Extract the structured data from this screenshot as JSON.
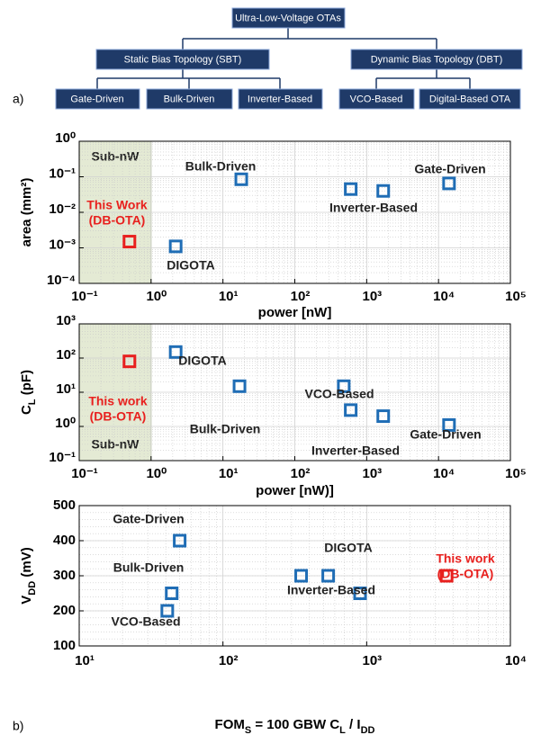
{
  "diagram": {
    "root": "Ultra-Low-Voltage OTAs",
    "branches": [
      {
        "label": "Static Bias Topology (SBT)",
        "children": [
          "Gate-Driven",
          "Bulk-Driven",
          "Inverter-Based"
        ]
      },
      {
        "label": "Dynamic Bias Topology (DBT)",
        "children": [
          "VCO-Based",
          "Digital-Based OTA"
        ]
      }
    ],
    "panel_labels": [
      "a)",
      "b)"
    ]
  },
  "chart_data": [
    {
      "type": "scatter",
      "xlabel": [
        {
          "text": "power [nW]"
        }
      ],
      "ylabel": [
        {
          "text": "area (mm²)"
        }
      ],
      "xlog": true,
      "ylog": true,
      "grid": true,
      "minor_grid": true,
      "xlim": [
        0.1,
        100000
      ],
      "ylim": [
        0.0001,
        1
      ],
      "xticks": [
        {
          "value": 0.1,
          "label": "10⁻¹"
        },
        {
          "value": 1,
          "label": "10⁰"
        },
        {
          "value": 10,
          "label": "10¹"
        },
        {
          "value": 100,
          "label": "10²"
        },
        {
          "value": 1000,
          "label": "10³"
        },
        {
          "value": 10000,
          "label": "10⁴"
        },
        {
          "value": 100000,
          "label": "10⁵"
        }
      ],
      "yticks": [
        {
          "value": 0.0001,
          "label": "10⁻⁴"
        },
        {
          "value": 0.001,
          "label": "10⁻³"
        },
        {
          "value": 0.01,
          "label": "10⁻²"
        },
        {
          "value": 0.1,
          "label": "10⁻¹"
        },
        {
          "value": 1,
          "label": "10⁰"
        }
      ],
      "shaded_region": {
        "xlim": [
          0.1,
          1
        ],
        "label": "Sub-nW"
      },
      "series": [
        {
          "name": "This Work",
          "subname": "(DB-OTA)",
          "color": "#e8201e",
          "x": [
            0.5
          ],
          "values": [
            0.0015
          ]
        },
        {
          "name": "DIGOTA",
          "color": "#1f6db5",
          "x": [
            2.2
          ],
          "values": [
            0.0011
          ]
        },
        {
          "name": "Bulk-Driven",
          "color": "#1f6db5",
          "x": [
            18
          ],
          "values": [
            0.085
          ]
        },
        {
          "name": "Inverter-Based",
          "color": "#1f6db5",
          "x": [
            600,
            1700
          ],
          "values": [
            0.045,
            0.04
          ]
        },
        {
          "name": "Gate-Driven",
          "color": "#1f6db5",
          "x": [
            14000
          ],
          "values": [
            0.065
          ]
        }
      ]
    },
    {
      "type": "scatter",
      "xlabel": [
        {
          "text": "power [nW)]"
        }
      ],
      "ylabel": [
        {
          "text": "C"
        },
        {
          "text": "L",
          "sub": true
        },
        {
          "text": " (pF)"
        }
      ],
      "xlog": true,
      "ylog": true,
      "grid": true,
      "minor_grid": true,
      "xlim": [
        0.1,
        100000
      ],
      "ylim": [
        0.1,
        1000
      ],
      "xticks": [
        {
          "value": 0.1,
          "label": "10⁻¹"
        },
        {
          "value": 1,
          "label": "10⁰"
        },
        {
          "value": 10,
          "label": "10¹"
        },
        {
          "value": 100,
          "label": "10²"
        },
        {
          "value": 1000,
          "label": "10³"
        },
        {
          "value": 10000,
          "label": "10⁴"
        },
        {
          "value": 100000,
          "label": "10⁵"
        }
      ],
      "yticks": [
        {
          "value": 0.1,
          "label": "10⁻¹"
        },
        {
          "value": 1,
          "label": "10⁰"
        },
        {
          "value": 10,
          "label": "10¹"
        },
        {
          "value": 100,
          "label": "10²"
        },
        {
          "value": 1000,
          "label": "10³"
        }
      ],
      "shaded_region": {
        "xlim": [
          0.1,
          1
        ],
        "label": "Sub-nW"
      },
      "series": [
        {
          "name": "This work",
          "subname": "(DB-OTA)",
          "color": "#e8201e",
          "x": [
            0.5
          ],
          "values": [
            80
          ]
        },
        {
          "name": "DIGOTA",
          "color": "#1f6db5",
          "x": [
            2.2
          ],
          "values": [
            150
          ]
        },
        {
          "name": "Bulk-Driven",
          "color": "#1f6db5",
          "x": [
            17
          ],
          "values": [
            15
          ]
        },
        {
          "name": "VCO-Based",
          "color": "#1f6db5",
          "x": [
            480
          ],
          "values": [
            15
          ]
        },
        {
          "name": "Inverter-Based",
          "color": "#1f6db5",
          "x": [
            600,
            1700
          ],
          "values": [
            3,
            2
          ]
        },
        {
          "name": "Gate-Driven",
          "color": "#1f6db5",
          "x": [
            14000
          ],
          "values": [
            1.1
          ]
        }
      ]
    },
    {
      "type": "scatter",
      "xlabel": [
        {
          "text": "FOM"
        },
        {
          "text": "S",
          "sub": true
        },
        {
          "text": " = 100 GBW C"
        },
        {
          "text": "L",
          "sub": true
        },
        {
          "text": " / I"
        },
        {
          "text": "DD",
          "sub": true
        }
      ],
      "ylabel": [
        {
          "text": "V"
        },
        {
          "text": "DD",
          "sub": true
        },
        {
          "text": " (mV)"
        }
      ],
      "xlog": true,
      "ylog": false,
      "grid": true,
      "minor_grid": true,
      "xlim": [
        10,
        10000
      ],
      "ylim": [
        100,
        500
      ],
      "xticks": [
        {
          "value": 10,
          "label": "10¹"
        },
        {
          "value": 100,
          "label": "10²"
        },
        {
          "value": 1000,
          "label": "10³"
        },
        {
          "value": 10000,
          "label": "10⁴"
        }
      ],
      "yticks": [
        100,
        200,
        300,
        400,
        500
      ],
      "series": [
        {
          "name": "Gate-Driven",
          "color": "#1f6db5",
          "x": [
            50
          ],
          "values": [
            400
          ]
        },
        {
          "name": "Bulk-Driven",
          "color": "#1f6db5",
          "x": [
            44
          ],
          "values": [
            250
          ]
        },
        {
          "name": "VCO-Based",
          "color": "#1f6db5",
          "x": [
            41
          ],
          "values": [
            200
          ]
        },
        {
          "name": "DIGOTA",
          "color": "#1f6db5",
          "x": [
            350,
            540
          ],
          "values": [
            300,
            300
          ]
        },
        {
          "name": "Inverter-Based",
          "color": "#1f6db5",
          "x": [
            900
          ],
          "values": [
            250
          ]
        },
        {
          "name": "This work",
          "subname": "(DB-OTA)",
          "color": "#e8201e",
          "x": [
            3600
          ],
          "values": [
            300
          ]
        }
      ]
    }
  ]
}
